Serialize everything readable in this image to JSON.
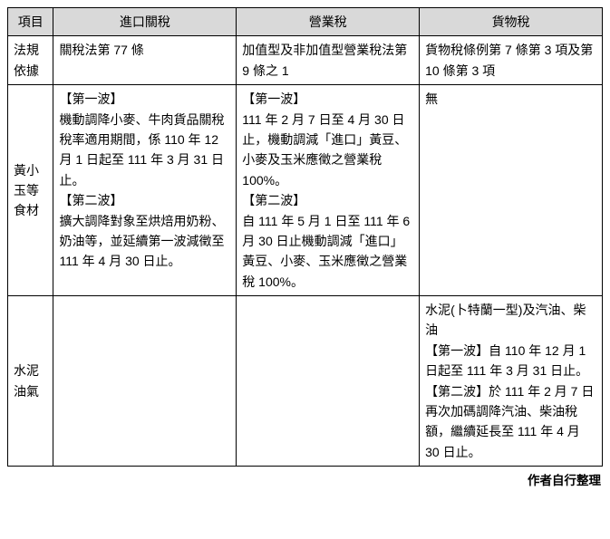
{
  "table": {
    "headers": {
      "item": "項目",
      "col_a": "進口關稅",
      "col_b": "營業稅",
      "col_c": "貨物稅"
    },
    "rows": {
      "r1": {
        "head": "法規依據",
        "a": "關稅法第 77 條",
        "b": "加值型及非加值型營業稅法第 9 條之 1",
        "c": "貨物稅條例第 7 條第 3 項及第 10 條第 3 項"
      },
      "r2": {
        "head": "黃小玉等食材",
        "a": "【第一波】\n機動調降小麥、牛肉貨品關稅稅率適用期間，係 110 年 12 月 1 日起至 111 年 3 月 31 日止。\n【第二波】\n擴大調降對象至烘焙用奶粉、奶油等，並延續第一波減徵至 111 年 4 月 30 日止。",
        "b": "【第一波】\n111 年 2 月 7 日至 4 月 30 日止，機動調減「進口」黃豆、小麥及玉米應徵之營業稅 100%。\n【第二波】\n自 111 年 5 月 1 日至 111 年 6 月 30 日止機動調減「進口」黃豆、小麥、玉米應徵之營業稅 100%。",
        "c": "無"
      },
      "r3": {
        "head": "水泥油氣",
        "a": "",
        "b": "",
        "c": "水泥(卜特蘭一型)及汽油、柴油\n【第一波】自 110 年 12 月 1 日起至 111 年 3 月 31 日止。\n【第二波】於 111 年 2 月 7 日再次加碼調降汽油、柴油稅額，繼續延長至 111 年 4 月 30 日止。"
      }
    }
  },
  "caption": "作者自行整理"
}
